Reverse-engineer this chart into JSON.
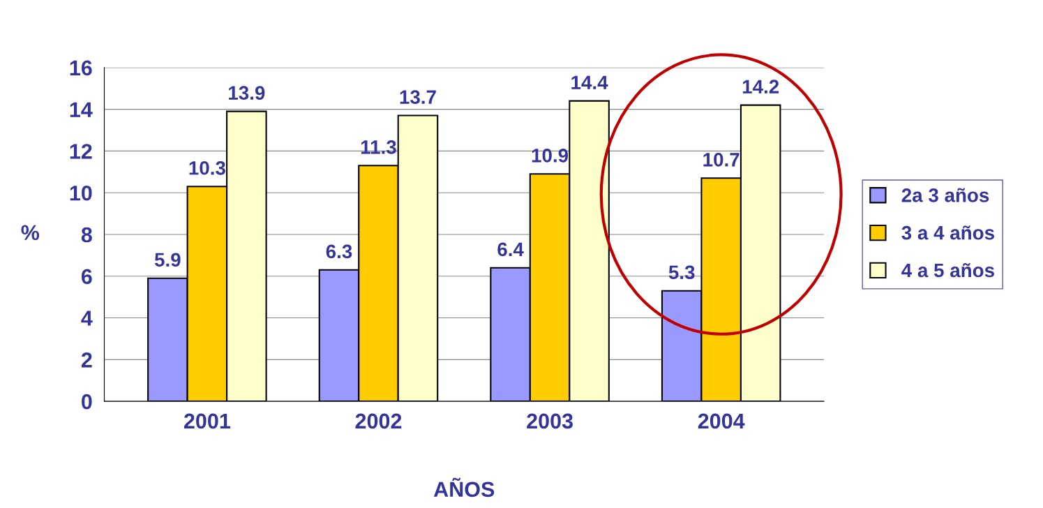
{
  "chart_data": {
    "type": "bar",
    "xlabel": "AÑOS",
    "ylabel": "%",
    "categories": [
      "2001",
      "2002",
      "2003",
      "2004"
    ],
    "series": [
      {
        "name": "2a 3 años",
        "color": "#9999ff",
        "values": [
          5.9,
          6.3,
          6.4,
          5.3
        ]
      },
      {
        "name": "3 a 4 años",
        "color": "#ffcc00",
        "values": [
          10.3,
          11.3,
          10.9,
          10.7
        ]
      },
      {
        "name": "4 a 5 años",
        "color": "#ffffcc",
        "values": [
          13.9,
          13.7,
          14.4,
          14.2
        ]
      }
    ],
    "ylim": [
      0,
      16
    ],
    "yticks": [
      0,
      2,
      4,
      6,
      8,
      10,
      12,
      14,
      16
    ],
    "grid": "y",
    "legend": "right",
    "data_labels": true
  }
}
